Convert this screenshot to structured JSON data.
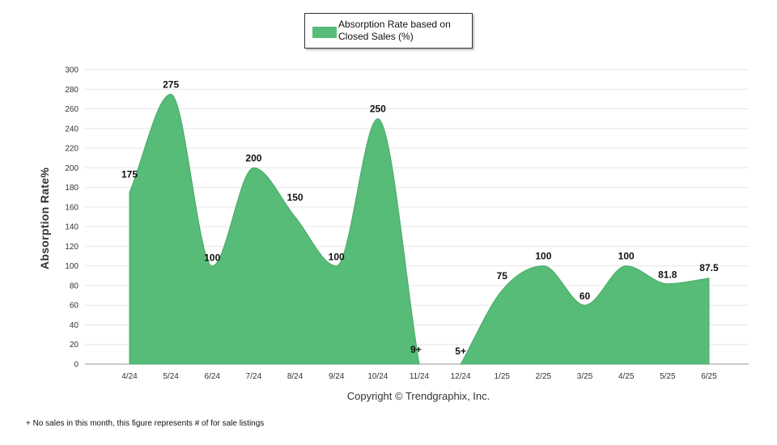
{
  "chart_data": {
    "type": "area",
    "title": "",
    "xlabel": "",
    "ylabel": "Absorption Rate%",
    "ylim": [
      0,
      300
    ],
    "ytick_step": 20,
    "grid": true,
    "legend_position": "top-center",
    "categories": [
      "4/24",
      "5/24",
      "6/24",
      "7/24",
      "8/24",
      "9/24",
      "10/24",
      "11/24",
      "12/24",
      "1/25",
      "2/25",
      "3/25",
      "4/25",
      "5/25",
      "6/25"
    ],
    "series": [
      {
        "name": "Absorption Rate based on Closed Sales (%)",
        "color": "#56bc77",
        "values": [
          175,
          275,
          100,
          200,
          150,
          100,
          250,
          0,
          0,
          75,
          100,
          60,
          100,
          81.8,
          87.5
        ],
        "labels": [
          "175",
          "275",
          "100",
          "200",
          "150",
          "100",
          "250",
          "9+",
          "5+",
          "75",
          "100",
          "60",
          "100",
          "81.8",
          "87.5"
        ]
      }
    ]
  },
  "copyright": "Copyright © Trendgraphix, Inc.",
  "footnote": "+ No sales in this month, this figure represents # of for sale listings"
}
